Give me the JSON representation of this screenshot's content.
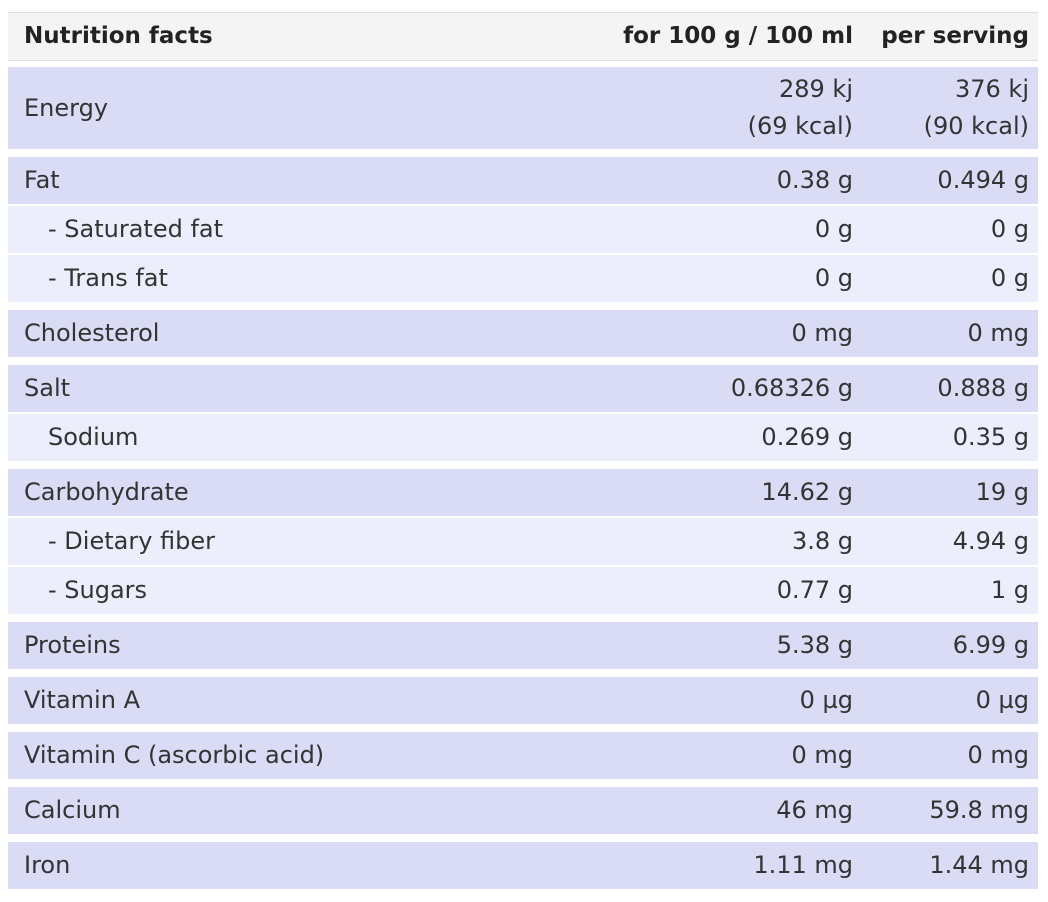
{
  "header": {
    "label": "Nutrition facts",
    "per_100": "for 100 g / 100 ml",
    "per_serving": "per serving"
  },
  "groups": [
    {
      "rows": [
        {
          "label": "Energy",
          "per_100": [
            "289 kj",
            "(69 kcal)"
          ],
          "per_serving": [
            "376 kj",
            "(90 kcal)"
          ]
        }
      ]
    },
    {
      "rows": [
        {
          "label": "Fat",
          "per_100": "0.38 g",
          "per_serving": "0.494 g"
        },
        {
          "label": "- Saturated fat",
          "per_100": "0 g",
          "per_serving": "0 g"
        },
        {
          "label": "- Trans fat",
          "per_100": "0 g",
          "per_serving": "0 g"
        }
      ]
    },
    {
      "rows": [
        {
          "label": "Cholesterol",
          "per_100": "0 mg",
          "per_serving": "0 mg"
        }
      ]
    },
    {
      "rows": [
        {
          "label": "Salt",
          "per_100": "0.68326 g",
          "per_serving": "0.888 g"
        },
        {
          "label": "Sodium",
          "per_100": "0.269 g",
          "per_serving": "0.35 g"
        }
      ]
    },
    {
      "rows": [
        {
          "label": "Carbohydrate",
          "per_100": "14.62 g",
          "per_serving": "19 g"
        },
        {
          "label": "- Dietary fiber",
          "per_100": "3.8 g",
          "per_serving": "4.94 g"
        },
        {
          "label": "- Sugars",
          "per_100": "0.77 g",
          "per_serving": "1 g"
        }
      ]
    },
    {
      "rows": [
        {
          "label": "Proteins",
          "per_100": "5.38 g",
          "per_serving": "6.99 g"
        }
      ]
    },
    {
      "rows": [
        {
          "label": "Vitamin A",
          "per_100": "0 µg",
          "per_serving": "0 µg"
        }
      ]
    },
    {
      "rows": [
        {
          "label": "Vitamin C (ascorbic acid)",
          "per_100": "0 mg",
          "per_serving": "0 mg"
        }
      ]
    },
    {
      "rows": [
        {
          "label": "Calcium",
          "per_100": "46 mg",
          "per_serving": "59.8 mg"
        }
      ]
    },
    {
      "rows": [
        {
          "label": "Iron",
          "per_100": "1.11 mg",
          "per_serving": "1.44 mg"
        }
      ]
    }
  ]
}
